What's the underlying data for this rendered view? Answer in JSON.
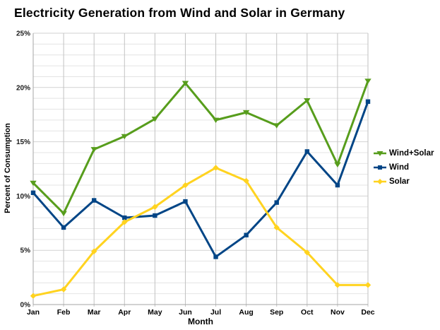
{
  "title": "Electricity Generation from Wind and Solar in Germany",
  "chart_data": {
    "type": "line",
    "title": "Electricity Generation from Wind and Solar in Germany",
    "xlabel": "Month",
    "ylabel": "Percent of Consumption",
    "ylim": [
      0,
      25
    ],
    "y_major_step": 5,
    "y_minor_step": 1,
    "y_tick_labels": [
      "0%",
      "5%",
      "10%",
      "15%",
      "20%",
      "25%"
    ],
    "grid": "on",
    "legend_position": "right",
    "categories": [
      "Jan",
      "Feb",
      "Mar",
      "Apr",
      "May",
      "Jun",
      "Jul",
      "Aug",
      "Sep",
      "Oct",
      "Nov",
      "Dec"
    ],
    "series": [
      {
        "name": "Wind+Solar",
        "color": "#579D1C",
        "marker": "triangle",
        "values": [
          11.2,
          8.4,
          14.3,
          15.5,
          17.1,
          20.4,
          17.0,
          17.7,
          16.5,
          18.8,
          12.9,
          20.6
        ]
      },
      {
        "name": "Wind",
        "color": "#004586",
        "marker": "square",
        "values": [
          10.3,
          7.1,
          9.6,
          8.0,
          8.2,
          9.5,
          4.4,
          6.4,
          9.4,
          14.1,
          11.0,
          18.7
        ]
      },
      {
        "name": "Solar",
        "color": "#FFD320",
        "marker": "diamond",
        "values": [
          0.8,
          1.4,
          4.9,
          7.6,
          9.0,
          11.0,
          12.6,
          11.4,
          7.1,
          4.8,
          1.8,
          1.8
        ]
      }
    ],
    "colors": {
      "grid_minor": "#e4e4e4",
      "grid_major": "#d2d2d2",
      "grid_vertical": "#c2c2c2",
      "axis": "#a6a6a6",
      "background": "#ffffff"
    }
  }
}
